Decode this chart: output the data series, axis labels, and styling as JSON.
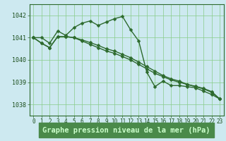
{
  "title": "Graphe pression niveau de la mer (hPa)",
  "background_color": "#cde9f0",
  "plot_bg_color": "#cde9f0",
  "line_color": "#2d6a2d",
  "grid_color": "#88cc88",
  "spine_color": "#2d6a2d",
  "xlabel_color": "#1a4d1a",
  "bottom_bar_color": "#4a8a4a",
  "bottom_label_color": "#ccffcc",
  "xlim": [
    -0.5,
    23.5
  ],
  "ylim": [
    1037.5,
    1042.5
  ],
  "yticks": [
    1038,
    1039,
    1040,
    1041,
    1042
  ],
  "xticks": [
    0,
    1,
    2,
    3,
    4,
    5,
    6,
    7,
    8,
    9,
    10,
    11,
    12,
    13,
    14,
    15,
    16,
    17,
    18,
    19,
    20,
    21,
    22,
    23
  ],
  "series1": [
    1041.0,
    1041.0,
    1040.75,
    1041.3,
    1041.1,
    1041.45,
    1041.65,
    1041.75,
    1041.55,
    1041.7,
    1041.85,
    1041.95,
    1041.35,
    1040.85,
    1039.45,
    1038.8,
    1039.05,
    1038.85,
    1038.85,
    1038.8,
    1038.75,
    1038.6,
    1038.45,
    1038.25
  ],
  "series2": [
    1041.0,
    1040.75,
    1040.55,
    1041.05,
    1041.05,
    1041.0,
    1040.85,
    1040.7,
    1040.55,
    1040.4,
    1040.3,
    1040.15,
    1040.0,
    1039.8,
    1039.6,
    1039.4,
    1039.25,
    1039.1,
    1039.0,
    1038.9,
    1038.8,
    1038.7,
    1038.55,
    1038.25
  ],
  "series3": [
    1041.0,
    1040.75,
    1040.55,
    1041.05,
    1041.05,
    1041.0,
    1040.9,
    1040.78,
    1040.65,
    1040.5,
    1040.4,
    1040.25,
    1040.1,
    1039.9,
    1039.7,
    1039.5,
    1039.3,
    1039.15,
    1039.05,
    1038.9,
    1038.82,
    1038.72,
    1038.58,
    1038.25
  ],
  "marker": "D",
  "marker_size": 2.5,
  "linewidth": 1.0,
  "title_fontsize": 7.5,
  "tick_fontsize": 6.0,
  "figsize": [
    3.2,
    2.0
  ],
  "dpi": 100
}
